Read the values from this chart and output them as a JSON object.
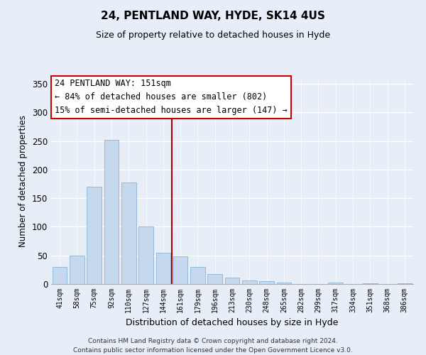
{
  "title": "24, PENTLAND WAY, HYDE, SK14 4US",
  "subtitle": "Size of property relative to detached houses in Hyde",
  "xlabel": "Distribution of detached houses by size in Hyde",
  "ylabel": "Number of detached properties",
  "categories": [
    "41sqm",
    "58sqm",
    "75sqm",
    "92sqm",
    "110sqm",
    "127sqm",
    "144sqm",
    "161sqm",
    "179sqm",
    "196sqm",
    "213sqm",
    "230sqm",
    "248sqm",
    "265sqm",
    "282sqm",
    "299sqm",
    "317sqm",
    "334sqm",
    "351sqm",
    "368sqm",
    "386sqm"
  ],
  "values": [
    30,
    50,
    170,
    252,
    178,
    101,
    55,
    48,
    30,
    17,
    11,
    6,
    5,
    2,
    0,
    0,
    2,
    0,
    1,
    0,
    1
  ],
  "bar_color": "#c5d8ed",
  "bar_edge_color": "#8ab4d4",
  "vline_color": "#aa0000",
  "vline_x": 6.5,
  "annotation_text": "24 PENTLAND WAY: 151sqm\n← 84% of detached houses are smaller (802)\n15% of semi-detached houses are larger (147) →",
  "annotation_box_color": "#ffffff",
  "annotation_box_edge_color": "#cc0000",
  "ylim": [
    0,
    360
  ],
  "yticks": [
    0,
    50,
    100,
    150,
    200,
    250,
    300,
    350
  ],
  "footer_line1": "Contains HM Land Registry data © Crown copyright and database right 2024.",
  "footer_line2": "Contains public sector information licensed under the Open Government Licence v3.0.",
  "background_color": "#e8eef8",
  "plot_bg_color": "#e8eef8",
  "grid_color": "#ffffff"
}
